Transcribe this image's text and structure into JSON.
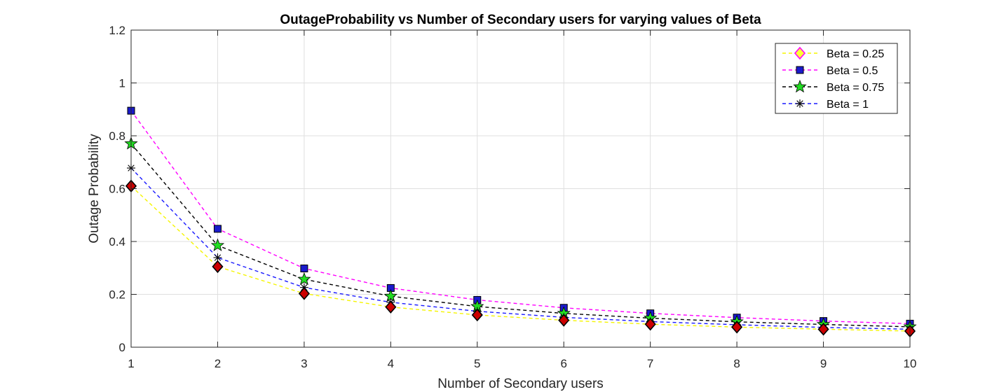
{
  "chart_data": {
    "type": "line",
    "title": "OutageProbability vs Number of Secondary users for varying values of Beta",
    "xlabel": "Number of Secondary users",
    "ylabel": "Outage Probability",
    "xlim": [
      1,
      10
    ],
    "ylim": [
      0,
      1.2
    ],
    "xticks": [
      "1",
      "2",
      "3",
      "4",
      "5",
      "6",
      "7",
      "8",
      "9",
      "10"
    ],
    "yticks": [
      "0",
      "0.2",
      "0.4",
      "0.6",
      "0.8",
      "1",
      "1.2"
    ],
    "grid": true,
    "legend_position": "top-right",
    "x": [
      1,
      2,
      3,
      4,
      5,
      6,
      7,
      8,
      9,
      10
    ],
    "series": [
      {
        "name": "Beta = 0.25",
        "line_color": "#f5f500",
        "marker": "diamond",
        "marker_edge": "#ff00ff",
        "marker_face": "#ffff33",
        "plot_edge": "#000000",
        "plot_face": "#cc0000",
        "values": [
          0.61,
          0.305,
          0.203,
          0.152,
          0.122,
          0.102,
          0.087,
          0.076,
          0.068,
          0.061
        ]
      },
      {
        "name": "Beta = 0.5",
        "line_color": "#ff00ff",
        "marker": "square",
        "marker_edge": "#000000",
        "marker_face": "#1a1acc",
        "values": [
          0.895,
          0.448,
          0.298,
          0.224,
          0.179,
          0.149,
          0.128,
          0.112,
          0.099,
          0.089
        ]
      },
      {
        "name": "Beta = 0.75",
        "line_color": "#000000",
        "marker": "pentagram",
        "marker_edge": "#000000",
        "marker_face": "#22dd22",
        "values": [
          0.77,
          0.385,
          0.257,
          0.193,
          0.154,
          0.128,
          0.11,
          0.096,
          0.086,
          0.077
        ]
      },
      {
        "name": "Beta = 1",
        "line_color": "#1a1aff",
        "marker": "asterisk",
        "marker_edge": "#000000",
        "marker_face": "none",
        "values": [
          0.678,
          0.339,
          0.226,
          0.17,
          0.136,
          0.113,
          0.097,
          0.085,
          0.075,
          0.068
        ]
      }
    ]
  }
}
